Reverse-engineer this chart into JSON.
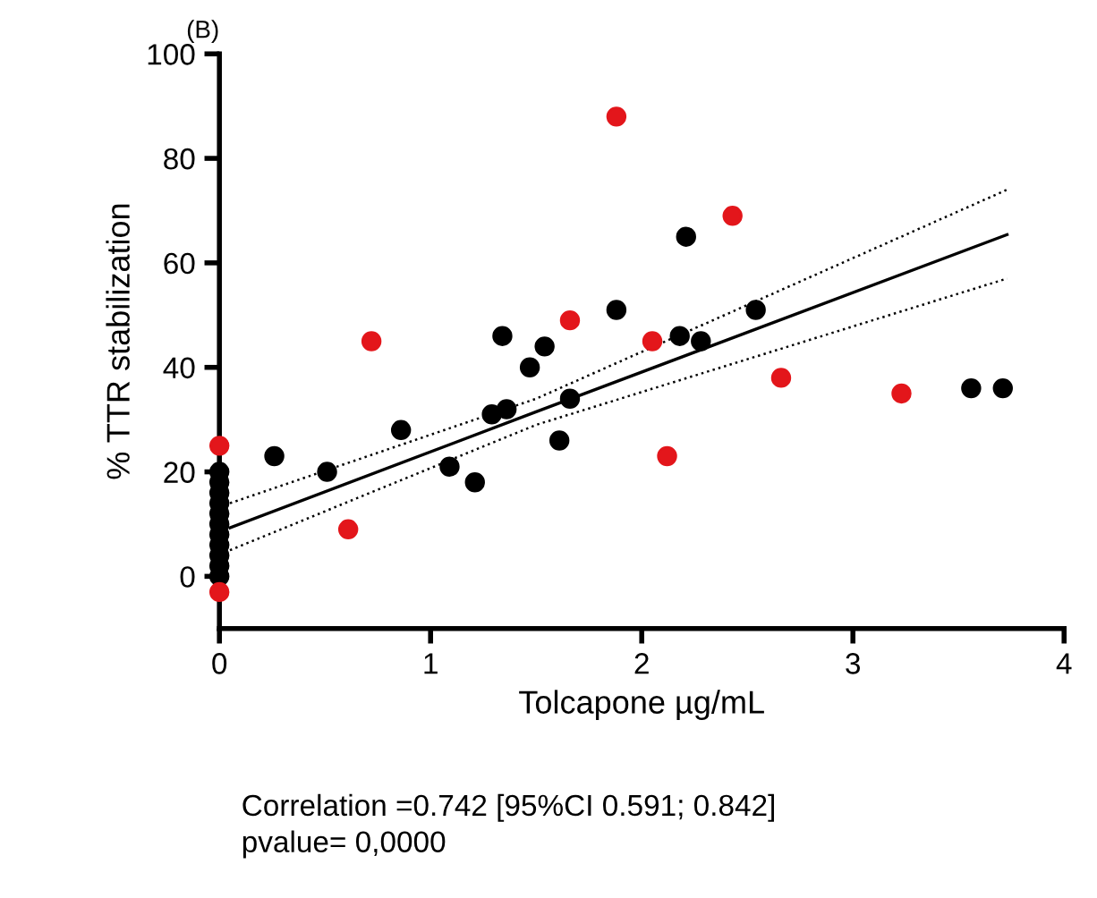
{
  "chart_data": {
    "type": "scatter",
    "title": "(B)",
    "xlabel": "Tolcapone µg/mL",
    "ylabel": "% TTR stabilization",
    "xlim": [
      0,
      4
    ],
    "xticks": [
      0,
      1,
      2,
      3,
      4
    ],
    "ylim": [
      -10,
      100
    ],
    "yticks": [
      0,
      20,
      40,
      60,
      80,
      100
    ],
    "grid": false,
    "marker": "circle",
    "series": [
      {
        "color": "#000000",
        "x": [
          0,
          0,
          0,
          0,
          0,
          0,
          0,
          0,
          0,
          0,
          0,
          0.26,
          0.51,
          0.86,
          1.09,
          1.21,
          1.29,
          1.36,
          1.34,
          1.47,
          1.54,
          1.61,
          1.66,
          1.88,
          2.18,
          2.21,
          2.28,
          2.54,
          3.56,
          3.71
        ],
        "values": [
          0,
          2,
          4,
          6,
          8,
          10,
          12,
          14,
          16,
          18,
          20,
          23,
          20,
          28,
          21,
          18,
          31,
          32,
          46,
          40,
          44,
          26,
          34,
          51,
          46,
          65,
          45,
          51,
          36,
          36
        ]
      },
      {
        "color": "#e3161b",
        "x": [
          0,
          0,
          0.61,
          0.72,
          1.66,
          1.88,
          2.05,
          2.12,
          2.43,
          2.66,
          3.23
        ],
        "values": [
          -3,
          25,
          9,
          45,
          49,
          88,
          45,
          23,
          69,
          38,
          35
        ]
      },
      {
        "type": "line",
        "marker": "none",
        "line_style": "solid",
        "color": "#000000",
        "x": [
          0.05,
          1.5,
          3.73
        ],
        "values": [
          9.3,
          31.5,
          65.4
        ]
      },
      {
        "type": "line",
        "marker": "none",
        "line_style": "dotted",
        "color": "#000000",
        "x": [
          0.05,
          1.5,
          3.73
        ],
        "values": [
          14,
          34,
          74
        ]
      },
      {
        "type": "line",
        "marker": "none",
        "line_style": "dotted",
        "color": "#000000",
        "x": [
          0.05,
          1.5,
          3.73
        ],
        "values": [
          5,
          29,
          57
        ]
      }
    ],
    "annotations": [
      "Correlation =0.742 [95%CI 0.591; 0.842]\npvalue= 0,0000"
    ]
  }
}
